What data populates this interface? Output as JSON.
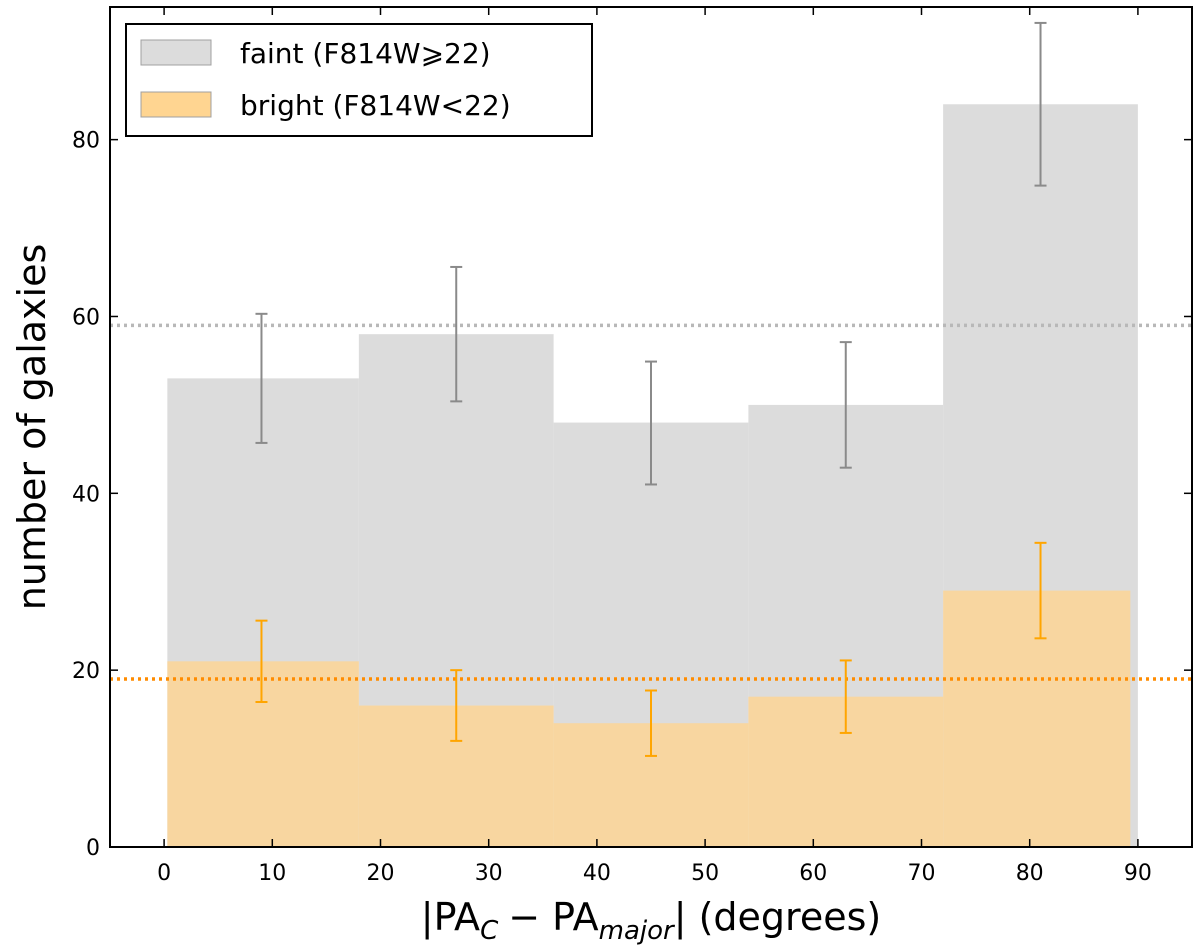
{
  "chart_data": {
    "type": "bar",
    "xlabel": {
      "prefix": "|PA",
      "sub1": "C",
      "mid": "− PA",
      "sub2": "major",
      "suffix": "|  (degrees)"
    },
    "ylabel": "number of galaxies",
    "xlim": [
      -5,
      95
    ],
    "ylim": [
      0,
      95
    ],
    "x_ticks": [
      0,
      10,
      20,
      30,
      40,
      50,
      60,
      70,
      80,
      90
    ],
    "y_ticks": [
      0,
      20,
      40,
      60,
      80
    ],
    "legend_placement": "top-left",
    "grid": false,
    "series": [
      {
        "name": "faint (F814W⩾22)",
        "color": "#dcdcdc",
        "error_color": "#8a8a8a",
        "bins": [
          [
            0.3,
            18
          ],
          [
            18,
            36
          ],
          [
            36,
            54
          ],
          [
            54,
            72
          ],
          [
            72,
            90
          ]
        ],
        "values": [
          53,
          58,
          48,
          50,
          84
        ],
        "error_x": [
          9,
          27,
          45,
          63,
          81
        ],
        "error_low": [
          45.7,
          50.4,
          41.0,
          42.9,
          74.8
        ],
        "error_high": [
          60.3,
          65.6,
          54.9,
          57.1,
          93.2
        ],
        "mean_line": 59,
        "mean_line_color": "#b8b8b8"
      },
      {
        "name": "bright (F814W<22)",
        "color": "#ffd591",
        "error_color": "#ffa500",
        "bins": [
          [
            0.3,
            18
          ],
          [
            18,
            36
          ],
          [
            36,
            54
          ],
          [
            54,
            72
          ],
          [
            72,
            89.3
          ]
        ],
        "values": [
          21,
          16,
          14,
          17,
          29
        ],
        "error_x": [
          9,
          27,
          45,
          63,
          81
        ],
        "error_low": [
          16.4,
          12.0,
          10.3,
          12.9,
          23.6
        ],
        "error_high": [
          25.6,
          20.0,
          17.7,
          21.1,
          34.4
        ],
        "mean_line": 19,
        "mean_line_color": "#ff8c00"
      }
    ]
  }
}
